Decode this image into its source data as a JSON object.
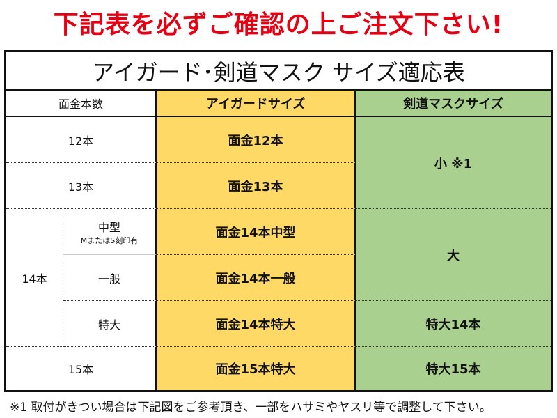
{
  "banner": "下記表を必ずご確認の上ご注文下さい!",
  "title": "アイガード･剣道マスク サイズ適応表",
  "headers": {
    "count": "面金本数",
    "eyeguard": "アイガードサイズ",
    "mask": "剣道マスクサイズ"
  },
  "rows": {
    "r12": {
      "count": "12本",
      "eyeguard": "面金12本"
    },
    "r13": {
      "count": "13本",
      "eyeguard": "面金13本"
    },
    "mask_small": "小 ※1",
    "r14": {
      "count": "14本",
      "medium": {
        "type": "中型",
        "note": "MまたはS刻印有",
        "eyeguard": "面金14本中型"
      },
      "general": {
        "type": "一般",
        "eyeguard": "面金14本一般"
      },
      "xl": {
        "type": "特大",
        "eyeguard": "面金14本特大",
        "mask": "特大14本"
      }
    },
    "mask_large": "大",
    "r15": {
      "count": "15本",
      "eyeguard": "面金15本特大",
      "mask": "特大15本"
    }
  },
  "colors": {
    "banner": "#e60012",
    "eyeguard": "#ffd966",
    "mask": "#a9d08e"
  },
  "footnote": "※1 取付がきつい場合は下記図をご参考頂き、一部をハサミやヤスリ等で調整して下さい。"
}
